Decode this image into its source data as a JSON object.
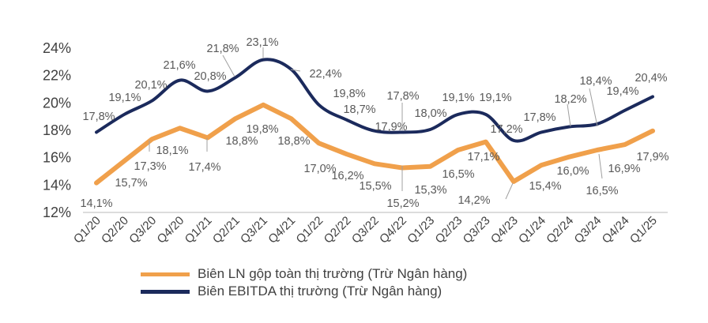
{
  "chart_data": {
    "type": "line",
    "categories": [
      "Q1/20",
      "Q2/20",
      "Q3/20",
      "Q4/20",
      "Q1/21",
      "Q2/21",
      "Q3/21",
      "Q4/21",
      "Q1/22",
      "Q2/22",
      "Q3/22",
      "Q4/22",
      "Q1/23",
      "Q2/23",
      "Q3/23",
      "Q4/23",
      "Q1/24",
      "Q2/24",
      "Q3/24",
      "Q4/24",
      "Q1/25"
    ],
    "yticks": [
      "12%",
      "14%",
      "16%",
      "18%",
      "20%",
      "22%",
      "24%"
    ],
    "ylim": [
      12,
      24
    ],
    "grid": false,
    "legend_position": "bottom",
    "series": [
      {
        "name": "Biên LN gộp toàn thị trường (Trừ Ngân hàng)",
        "color": "#F0A04B",
        "smooth": false,
        "values": [
          14.1,
          15.7,
          17.3,
          18.1,
          17.4,
          18.8,
          19.8,
          18.8,
          17.0,
          16.2,
          15.5,
          15.2,
          15.3,
          16.5,
          17.1,
          14.2,
          15.4,
          16.0,
          16.5,
          16.9,
          17.9
        ],
        "labels": [
          "14,1%",
          "15,7%",
          "17,3%",
          "18,1%",
          "17,4%",
          "18,8%",
          "19,8%",
          "18,8%",
          "17,0%",
          "16,2%",
          "15,5%",
          "15,2%",
          "15,3%",
          "16,5%",
          "17,1%",
          "14,2%",
          "15,4%",
          "16,0%",
          "16,5%",
          "16,9%",
          "17,9%"
        ]
      },
      {
        "name": "Biên EBITDA thị trường (Trừ Ngân hàng)",
        "color": "#1B2A5C",
        "smooth": true,
        "values": [
          17.8,
          19.1,
          20.1,
          21.6,
          20.8,
          21.8,
          23.1,
          22.4,
          19.8,
          18.7,
          17.9,
          17.8,
          18.0,
          19.1,
          19.1,
          17.2,
          17.8,
          18.2,
          18.4,
          19.4,
          20.4
        ],
        "labels": [
          "17,8%",
          "19,1%",
          "20,1%",
          "21,6%",
          "20,8%",
          "21,8%",
          "23,1%",
          "22,4%",
          "19,8%",
          "18,7%",
          "17,9%",
          "17,8%",
          "18,0%",
          "19,1%",
          "19,1%",
          "17,2%",
          "17,8%",
          "18,2%",
          "18,4%",
          "19,4%",
          "20,4%"
        ]
      }
    ]
  }
}
